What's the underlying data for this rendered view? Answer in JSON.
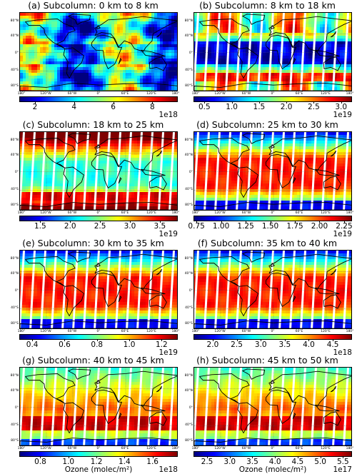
{
  "colorbar_label": "Ozone (molec/m²)",
  "lat_labels": [
    "80°N",
    "40°N",
    "0°",
    "40°S",
    "80°S"
  ],
  "lon_labels": [
    "180°",
    "120°W",
    "60°W",
    "0°",
    "60°E",
    "120°E",
    "180°"
  ],
  "colormap": [
    "#00007f",
    "#0000ff",
    "#007fff",
    "#00ffff",
    "#7fff7f",
    "#ffff00",
    "#ff7f00",
    "#ff0000",
    "#7f0000"
  ],
  "panels": [
    {
      "title": "(a) Subcolumn: 0 km to 8 km",
      "pattern": "trop",
      "ticks": [
        "2",
        "4",
        "6",
        "8"
      ],
      "tick_values": [
        2,
        4,
        6,
        8
      ],
      "range": [
        1.2,
        9.3
      ],
      "exponent": "1e18",
      "label": false
    },
    {
      "title": "(b) Subcolumn: 8 km to 18 km",
      "pattern": "utls",
      "ticks": [
        "0.5",
        "1.0",
        "1.5",
        "2.0",
        "2.5",
        "3.0"
      ],
      "tick_values": [
        0.5,
        1.0,
        1.5,
        2.0,
        2.5,
        3.0
      ],
      "range": [
        0.3,
        3.2
      ],
      "exponent": "1e19",
      "label": false
    },
    {
      "title": "(c) Subcolumn: 18 km to 25 km",
      "pattern": "lower_strat",
      "ticks": [
        "1.5",
        "2.0",
        "2.5",
        "3.0",
        "3.5"
      ],
      "tick_values": [
        1.5,
        2.0,
        2.5,
        3.0,
        3.5
      ],
      "range": [
        1.15,
        3.8
      ],
      "exponent": "1e19",
      "label": false
    },
    {
      "title": "(d) Subcolumn: 25 km to 30 km",
      "pattern": "mid_strat",
      "ticks": [
        "0.75",
        "1.00",
        "1.25",
        "1.50",
        "1.75",
        "2.00",
        "2.25"
      ],
      "tick_values": [
        0.75,
        1.0,
        1.25,
        1.5,
        1.75,
        2.0,
        2.25
      ],
      "range": [
        0.72,
        2.33
      ],
      "exponent": "1e19",
      "label": false
    },
    {
      "title": "(e) Subcolumn: 30 km to 35 km",
      "pattern": "mid_strat",
      "ticks": [
        "0.4",
        "0.6",
        "0.8",
        "1.0",
        "1.2"
      ],
      "tick_values": [
        0.4,
        0.6,
        0.8,
        1.0,
        1.2
      ],
      "range": [
        0.32,
        1.3
      ],
      "exponent": "1e19",
      "label": false
    },
    {
      "title": "(f) Subcolumn: 35 km to 40 km",
      "pattern": "mid_strat",
      "ticks": [
        "2.0",
        "2.5",
        "3.0",
        "3.5",
        "4.0",
        "4.5"
      ],
      "tick_values": [
        2.0,
        2.5,
        3.0,
        3.5,
        4.0,
        4.5
      ],
      "range": [
        1.6,
        4.9
      ],
      "exponent": "1e18",
      "label": false
    },
    {
      "title": "(g) Subcolumn: 40 km to 45 km",
      "pattern": "upper_strat",
      "ticks": [
        "0.8",
        "1.0",
        "1.2",
        "1.4",
        "1.6"
      ],
      "tick_values": [
        0.8,
        1.0,
        1.2,
        1.4,
        1.6
      ],
      "range": [
        0.65,
        1.78
      ],
      "exponent": "1e18",
      "label": true
    },
    {
      "title": "(h) Subcolumn: 45 km to 50 km",
      "pattern": "upper_strat",
      "ticks": [
        "2.5",
        "3.0",
        "3.5",
        "4.0",
        "4.5",
        "5.0",
        "5.5"
      ],
      "tick_values": [
        2.5,
        3.0,
        3.5,
        4.0,
        4.5,
        5.0,
        5.5
      ],
      "range": [
        2.2,
        5.7
      ],
      "exponent": "1e17",
      "label": true
    }
  ],
  "chart_data": [
    {
      "type": "heatmap",
      "title": "(a) Subcolumn: 0 km to 8 km",
      "xlabel": "",
      "ylabel": "",
      "colorbar_ticks": [
        2,
        4,
        6,
        8
      ],
      "colorbar_scale": "1e18",
      "xlim": [
        "180°",
        "180°"
      ],
      "ylim": [
        "80°S",
        "80°N"
      ]
    },
    {
      "type": "heatmap",
      "title": "(b) Subcolumn: 8 km to 18 km",
      "xlabel": "",
      "ylabel": "",
      "colorbar_ticks": [
        0.5,
        1.0,
        1.5,
        2.0,
        2.5,
        3.0
      ],
      "colorbar_scale": "1e19"
    },
    {
      "type": "heatmap",
      "title": "(c) Subcolumn: 18 km to 25 km",
      "xlabel": "",
      "ylabel": "",
      "colorbar_ticks": [
        1.5,
        2.0,
        2.5,
        3.0,
        3.5
      ],
      "colorbar_scale": "1e19"
    },
    {
      "type": "heatmap",
      "title": "(d) Subcolumn: 25 km to 30 km",
      "xlabel": "",
      "ylabel": "",
      "colorbar_ticks": [
        0.75,
        1.0,
        1.25,
        1.5,
        1.75,
        2.0,
        2.25
      ],
      "colorbar_scale": "1e19"
    },
    {
      "type": "heatmap",
      "title": "(e) Subcolumn: 30 km to 35 km",
      "xlabel": "",
      "ylabel": "",
      "colorbar_ticks": [
        0.4,
        0.6,
        0.8,
        1.0,
        1.2
      ],
      "colorbar_scale": "1e19"
    },
    {
      "type": "heatmap",
      "title": "(f) Subcolumn: 35 km to 40 km",
      "xlabel": "",
      "ylabel": "",
      "colorbar_ticks": [
        2.0,
        2.5,
        3.0,
        3.5,
        4.0,
        4.5
      ],
      "colorbar_scale": "1e18"
    },
    {
      "type": "heatmap",
      "title": "(g) Subcolumn: 40 km to 45 km",
      "xlabel": "Ozone (molec/m²)",
      "ylabel": "",
      "colorbar_ticks": [
        0.8,
        1.0,
        1.2,
        1.4,
        1.6
      ],
      "colorbar_scale": "1e18"
    },
    {
      "type": "heatmap",
      "title": "(h) Subcolumn: 45 km to 50 km",
      "xlabel": "Ozone (molec/m²)",
      "ylabel": "",
      "colorbar_ticks": [
        2.5,
        3.0,
        3.5,
        4.0,
        4.5,
        5.0,
        5.5
      ],
      "colorbar_scale": "1e17"
    }
  ]
}
